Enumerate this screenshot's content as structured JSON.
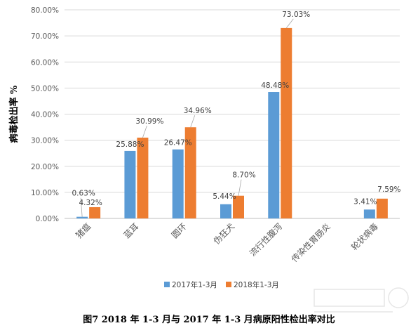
{
  "chart_data": {
    "type": "bar",
    "ylabel": "病毒检出率 %",
    "ylim": [
      0,
      80
    ],
    "yticks": [
      "0.00%",
      "10.00%",
      "20.00%",
      "30.00%",
      "40.00%",
      "50.00%",
      "60.00%",
      "70.00%",
      "80.00%"
    ],
    "categories": [
      "猪瘟",
      "蓝耳",
      "圆环",
      "伪狂犬",
      "流行性腹泻",
      "传染性胃肠炎",
      "轮状病毒"
    ],
    "series": [
      {
        "name": "2017年1-3月",
        "color": "#5B9BD5",
        "values": [
          0.63,
          25.88,
          26.47,
          5.44,
          48.48,
          0,
          3.41
        ],
        "labels": [
          "0.63%",
          "25.88%",
          "26.47%",
          "5.44%",
          "48.48%",
          "",
          "3.41%"
        ]
      },
      {
        "name": "2018年1-3月",
        "color": "#ED7D31",
        "values": [
          4.32,
          30.99,
          34.96,
          8.7,
          73.03,
          0,
          7.59
        ],
        "labels": [
          "4.32%",
          "30.99%",
          "34.96%",
          "8.70%",
          "73.03%",
          "",
          "7.59%"
        ]
      }
    ],
    "grid": true,
    "legend_position": "bottom"
  },
  "caption": "图7  2018 年 1-3 月与 2017 年 1-3 月病原阳性检出率对比"
}
